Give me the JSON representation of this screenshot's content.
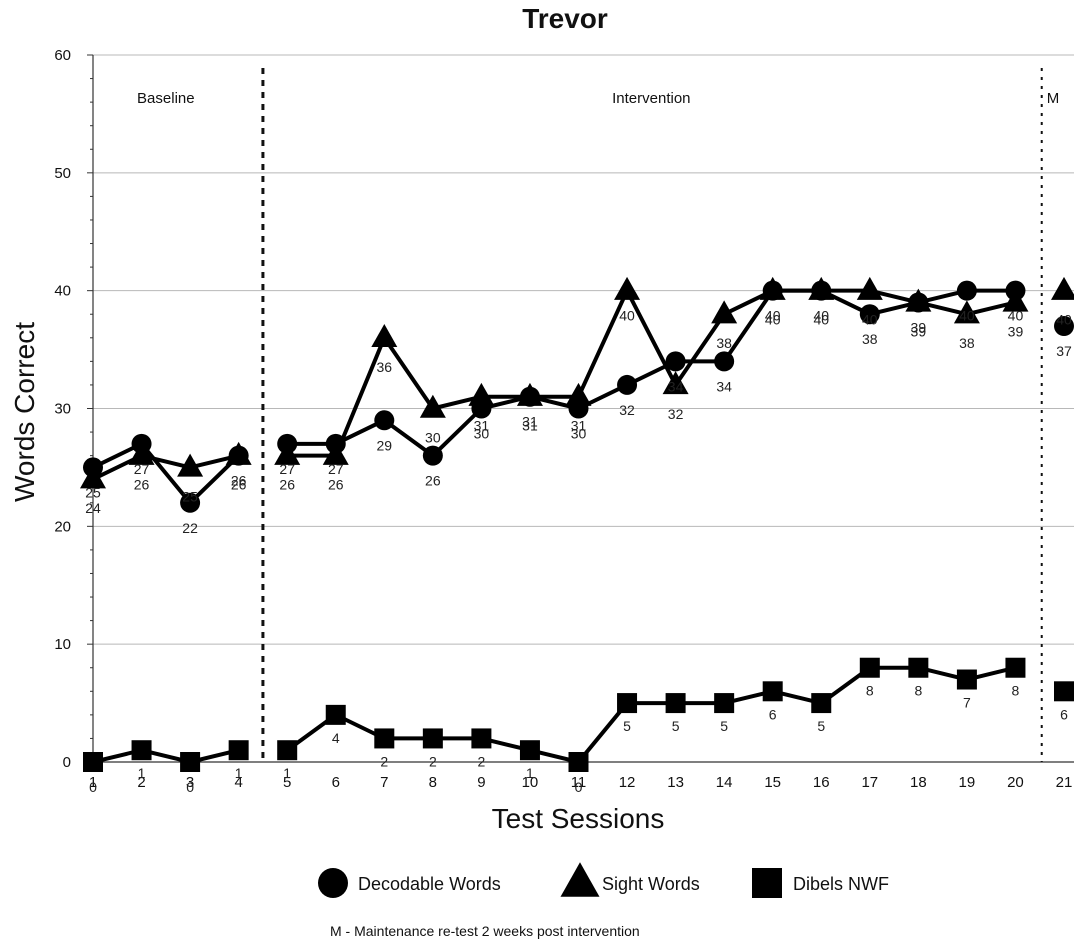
{
  "chart_data": {
    "type": "line",
    "title": "Trevor",
    "xlabel": "Test Sessions",
    "ylabel": "Words Correct",
    "ylim": [
      0,
      60
    ],
    "yticks": [
      "0",
      "10",
      "20",
      "30",
      "40",
      "50",
      "60"
    ],
    "grid": true,
    "x": [
      1,
      2,
      3,
      4,
      5,
      6,
      7,
      8,
      9,
      10,
      11,
      12,
      13,
      14,
      15,
      16,
      17,
      18,
      19,
      20,
      21
    ],
    "phases": [
      {
        "label": "Baseline",
        "sessions": [
          1,
          4
        ]
      },
      {
        "label": "Intervention",
        "sessions": [
          5,
          20
        ]
      },
      {
        "label": "M",
        "sessions": [
          21,
          21
        ]
      }
    ],
    "phase_lines_after_session": [
      4.5,
      20.5
    ],
    "series": [
      {
        "name": "Decodable Words",
        "marker": "circle",
        "values": [
          25,
          27,
          22,
          26,
          27,
          27,
          29,
          26,
          30,
          31,
          30,
          32,
          34,
          34,
          40,
          40,
          38,
          39,
          40,
          40,
          37
        ]
      },
      {
        "name": "Sight Words",
        "marker": "triangle",
        "values": [
          24,
          26,
          25,
          26,
          26,
          26,
          36,
          30,
          31,
          31,
          31,
          40,
          32,
          38,
          40,
          40,
          40,
          39,
          38,
          39,
          40
        ]
      },
      {
        "name": "Dibels NWF",
        "marker": "square",
        "values": [
          0,
          1,
          0,
          1,
          1,
          4,
          2,
          2,
          2,
          1,
          0,
          5,
          5,
          5,
          6,
          5,
          8,
          8,
          7,
          8,
          6
        ]
      }
    ],
    "legend_position": "bottom",
    "footnote": "M - Maintenance re-test 2 weeks post intervention"
  }
}
